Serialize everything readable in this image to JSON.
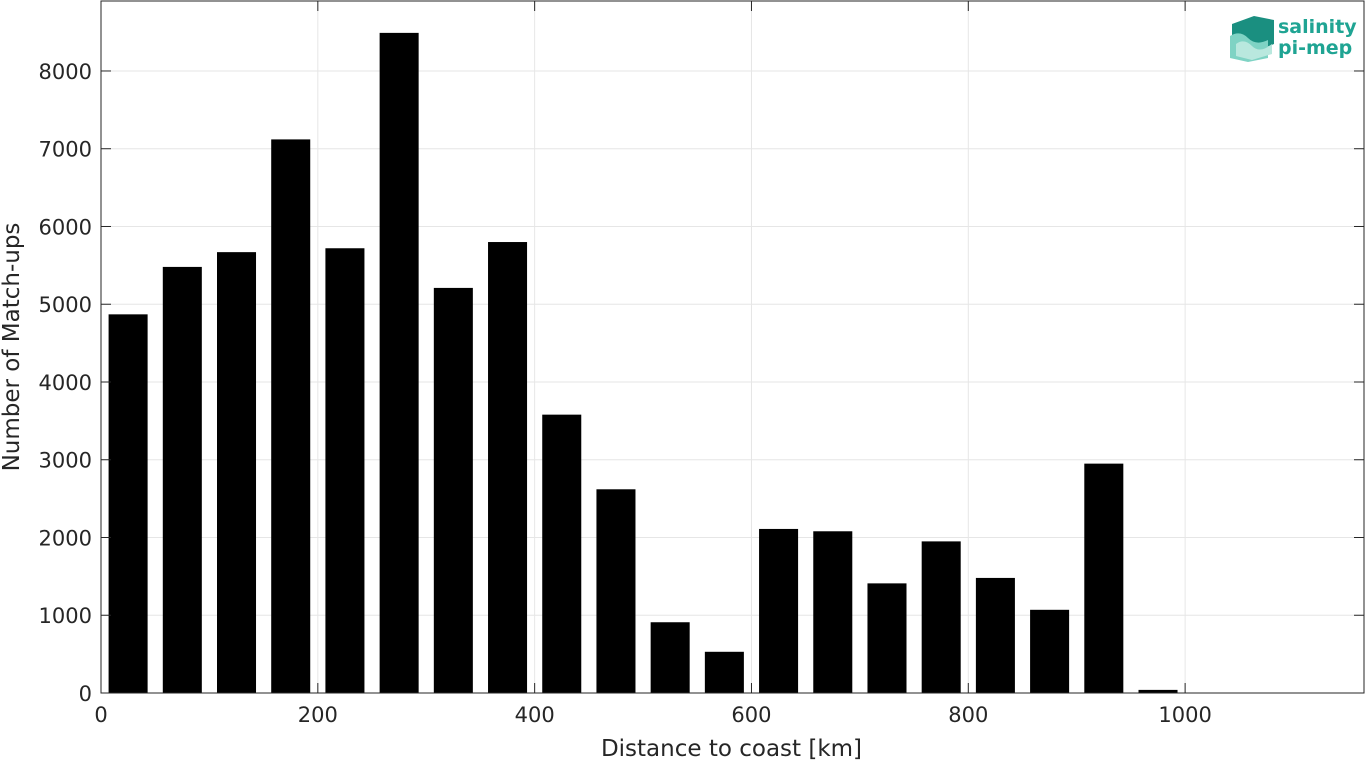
{
  "chart_data": {
    "type": "bar",
    "title": "",
    "xlabel": "Distance to coast [km]",
    "ylabel": "Number of Match-ups",
    "xlim": [
      0,
      1165
    ],
    "ylim": [
      0,
      8900
    ],
    "xticks": [
      0,
      200,
      400,
      600,
      800,
      1000
    ],
    "yticks": [
      0,
      1000,
      2000,
      3000,
      4000,
      5000,
      6000,
      7000,
      8000
    ],
    "bin_width": 50,
    "x": [
      25,
      75,
      125,
      175,
      225,
      275,
      325,
      375,
      425,
      475,
      525,
      575,
      625,
      675,
      725,
      775,
      825,
      875,
      925,
      975,
      1025,
      1075,
      1125
    ],
    "values": [
      4870,
      5480,
      5670,
      7120,
      5720,
      8490,
      5210,
      5800,
      3580,
      2620,
      910,
      530,
      2110,
      2080,
      1410,
      1950,
      1480,
      1070,
      2950,
      40,
      5,
      5,
      5
    ],
    "bar_color": "#000000",
    "grid": true
  },
  "logo": {
    "line1": "salinity",
    "line2": "pi-mep",
    "color": "#1fa493"
  }
}
